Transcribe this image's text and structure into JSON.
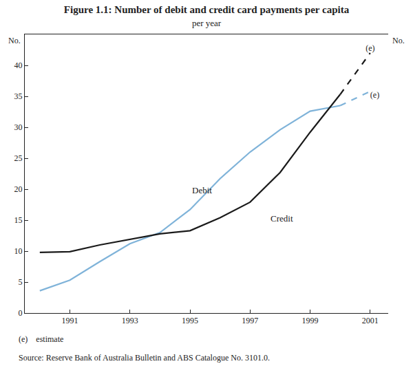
{
  "chart_data": {
    "type": "line",
    "title": "Figure 1.1: Number of debit and credit card payments per capita",
    "subtitle": "per year",
    "y_label": "No.",
    "note": "(e)    estimate",
    "source": "Source: Reserve Bank of Australia Bulletin and ABS Catalogue No. 3101.0.",
    "x": [
      1990,
      1991,
      1992,
      1993,
      1994,
      1995,
      1996,
      1997,
      1998,
      1999,
      2000,
      2001
    ],
    "xlim": [
      1989.5,
      2001.6
    ],
    "xticks": [
      1991,
      1993,
      1995,
      1997,
      1999,
      2001
    ],
    "ylim": [
      0,
      45
    ],
    "yticks": [
      0,
      5,
      10,
      15,
      20,
      25,
      30,
      35,
      40
    ],
    "grid": false,
    "series": [
      {
        "name": "Debit",
        "color": "#7fb3d9",
        "line_style": "solid",
        "label_x": 1995.4,
        "label_y": 19.8,
        "values": [
          3.6,
          5.3,
          8.3,
          11.2,
          13.0,
          16.7,
          21.7,
          26.0,
          29.6,
          32.6,
          33.5,
          null
        ]
      },
      {
        "name": "Credit",
        "color": "#1a1a1a",
        "line_style": "solid",
        "label_x": 1998.05,
        "label_y": 15.3,
        "values": [
          9.8,
          9.9,
          11.0,
          11.9,
          12.8,
          13.3,
          15.4,
          17.9,
          22.7,
          29.2,
          35.3,
          null
        ]
      },
      {
        "name": "(e)",
        "color": "#7fb3d9",
        "line_style": "dashed",
        "values": [
          null,
          null,
          null,
          null,
          null,
          null,
          null,
          null,
          null,
          null,
          33.5,
          35.8
        ]
      },
      {
        "name": "(e)",
        "color": "#1a1a1a",
        "line_style": "dashed",
        "values": [
          null,
          null,
          null,
          null,
          null,
          null,
          null,
          null,
          null,
          null,
          35.3,
          42.0
        ]
      }
    ]
  }
}
